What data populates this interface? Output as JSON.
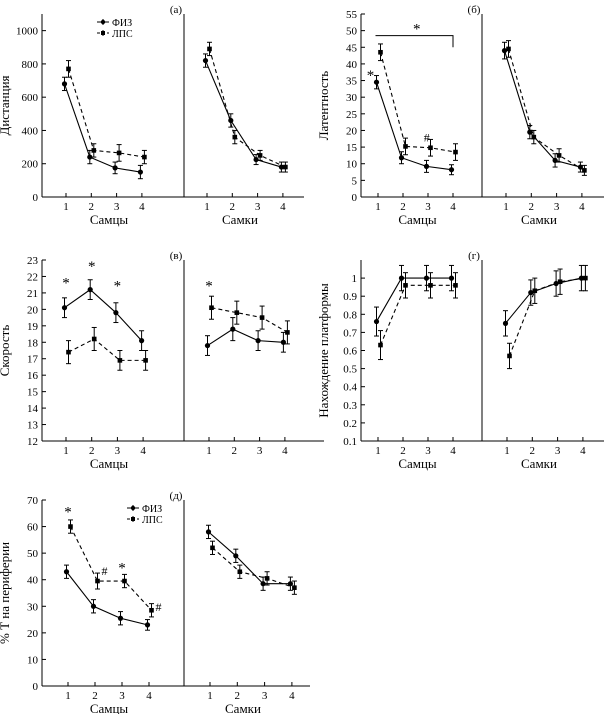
{
  "chart_data": [
    {
      "type": "line",
      "panel_label": "(а)",
      "title": "",
      "xlabel": "Самцы",
      "ylabel": "Дистанция",
      "x": [
        1,
        2,
        3,
        4
      ],
      "xticks": [
        "1",
        "2",
        "3",
        "4"
      ],
      "ylim": [
        0,
        1100
      ],
      "yticks": [
        0,
        200,
        400,
        600,
        800,
        1000
      ],
      "legend": {
        "entries": [
          "ФИЗ",
          "ЛПС"
        ],
        "placement": "top-left"
      },
      "series": [
        {
          "name": "ФИЗ",
          "style": "solid",
          "values": [
            680,
            240,
            175,
            150
          ],
          "errors": [
            40,
            40,
            35,
            40
          ]
        },
        {
          "name": "ЛПС",
          "style": "dashed",
          "values": [
            770,
            280,
            265,
            240
          ],
          "errors": [
            50,
            40,
            50,
            40
          ]
        }
      ],
      "annotations": []
    },
    {
      "type": "line",
      "panel_label": "",
      "title": "",
      "xlabel": "Самки",
      "ylabel": "",
      "x": [
        1,
        2,
        3,
        4
      ],
      "xticks": [
        "1",
        "2",
        "3",
        "4"
      ],
      "ylim": [
        0,
        1100
      ],
      "yticks": [],
      "series": [
        {
          "name": "ФИЗ",
          "style": "solid",
          "values": [
            820,
            460,
            225,
            180
          ],
          "errors": [
            40,
            40,
            30,
            30
          ]
        },
        {
          "name": "ЛПС",
          "style": "dashed",
          "values": [
            890,
            360,
            250,
            180
          ],
          "errors": [
            40,
            40,
            30,
            30
          ]
        }
      ],
      "annotations": []
    },
    {
      "type": "line",
      "panel_label": "(б)",
      "title": "",
      "xlabel": "Самцы",
      "ylabel": "Латентность",
      "x": [
        1,
        2,
        3,
        4
      ],
      "xticks": [
        "1",
        "2",
        "3",
        "4"
      ],
      "ylim": [
        0,
        55
      ],
      "yticks": [
        0,
        5,
        10,
        15,
        20,
        25,
        30,
        35,
        40,
        45,
        50,
        55
      ],
      "series": [
        {
          "name": "ФИЗ",
          "style": "solid",
          "values": [
            34.5,
            11.8,
            9.2,
            8.2
          ],
          "errors": [
            2.0,
            1.8,
            1.8,
            1.5
          ]
        },
        {
          "name": "ЛПС",
          "style": "dashed",
          "values": [
            43.5,
            15.2,
            14.8,
            13.5
          ],
          "errors": [
            2.5,
            2.5,
            2.5,
            2.5
          ]
        }
      ],
      "annotations": [
        {
          "text": "*",
          "x": 0.7,
          "y": 37
        },
        {
          "text": "*",
          "x": 2.55,
          "y": 51
        },
        {
          "text": "#",
          "x": 2.95,
          "y": 18.5
        }
      ],
      "bracket": {
        "from": 0.9,
        "to": 4.0,
        "y": 48.5,
        "down_to": 45
      }
    },
    {
      "type": "line",
      "panel_label": "",
      "title": "",
      "xlabel": "Самки",
      "ylabel": "",
      "x": [
        1,
        2,
        3,
        4
      ],
      "xticks": [
        "1",
        "2",
        "3",
        "4"
      ],
      "ylim": [
        0,
        55
      ],
      "yticks": [],
      "series": [
        {
          "name": "ФИЗ",
          "style": "solid",
          "values": [
            44.0,
            19.5,
            11.0,
            9.0
          ],
          "errors": [
            2.5,
            2.0,
            2.0,
            1.5
          ]
        },
        {
          "name": "ЛПС",
          "style": "dashed",
          "values": [
            44.5,
            18.0,
            12.5,
            8.0
          ],
          "errors": [
            2.5,
            2.0,
            2.0,
            1.5
          ]
        }
      ],
      "annotations": []
    },
    {
      "type": "line",
      "panel_label": "(в)",
      "title": "",
      "xlabel": "Самцы",
      "ylabel": "Скорость",
      "x": [
        1,
        2,
        3,
        4
      ],
      "xticks": [
        "1",
        "2",
        "3",
        "4"
      ],
      "ylim": [
        12,
        23
      ],
      "yticks": [
        12,
        13,
        14,
        15,
        16,
        17,
        18,
        19,
        20,
        21,
        22,
        23
      ],
      "series": [
        {
          "name": "ФИЗ",
          "style": "solid",
          "values": [
            20.1,
            21.2,
            19.8,
            18.1
          ],
          "errors": [
            0.6,
            0.6,
            0.6,
            0.6
          ]
        },
        {
          "name": "ЛПС",
          "style": "dashed",
          "values": [
            17.4,
            18.2,
            16.9,
            16.9
          ],
          "errors": [
            0.7,
            0.7,
            0.6,
            0.6
          ]
        }
      ],
      "annotations": [
        {
          "text": "*",
          "x": 1,
          "y": 21.7
        },
        {
          "text": "*",
          "x": 2,
          "y": 22.7
        },
        {
          "text": "*",
          "x": 3,
          "y": 21.5
        }
      ]
    },
    {
      "type": "line",
      "panel_label": "",
      "title": "",
      "xlabel": "",
      "ylabel": "",
      "x": [
        1,
        2,
        3,
        4
      ],
      "xticks": [
        "1",
        "2",
        "3",
        "4"
      ],
      "ylim": [
        12,
        23
      ],
      "yticks": [],
      "series": [
        {
          "name": "ФИЗ",
          "style": "solid",
          "values": [
            17.8,
            18.8,
            18.1,
            18.0
          ],
          "errors": [
            0.6,
            0.7,
            0.6,
            0.6
          ]
        },
        {
          "name": "ЛПС",
          "style": "dashed",
          "values": [
            20.1,
            19.8,
            19.5,
            18.6
          ],
          "errors": [
            0.7,
            0.7,
            0.7,
            0.7
          ]
        }
      ],
      "annotations": [
        {
          "text": "*",
          "x": 1,
          "y": 21.5
        }
      ]
    },
    {
      "type": "line",
      "panel_label": "(г)",
      "title": "",
      "xlabel": "Самцы",
      "ylabel": "Нахождение платформы",
      "x": [
        1,
        2,
        3,
        4
      ],
      "xticks": [
        "1",
        "2",
        "3",
        "4"
      ],
      "ylim": [
        0.1,
        1.1
      ],
      "yticks": [
        0.1,
        0.2,
        0.3,
        0.4,
        0.5,
        0.6,
        0.7,
        0.8,
        0.9,
        1.0
      ],
      "series": [
        {
          "name": "ФИЗ",
          "style": "solid",
          "values": [
            0.76,
            1.0,
            1.0,
            1.0
          ],
          "errors": [
            0.08,
            0.07,
            0.07,
            0.07
          ]
        },
        {
          "name": "ЛПС",
          "style": "dashed",
          "values": [
            0.63,
            0.96,
            0.96,
            0.96
          ],
          "errors": [
            0.08,
            0.07,
            0.07,
            0.07
          ]
        }
      ],
      "annotations": []
    },
    {
      "type": "line",
      "panel_label": "",
      "title": "",
      "xlabel": "Самки",
      "ylabel": "",
      "x": [
        1,
        2,
        3,
        4
      ],
      "xticks": [
        "1",
        "2",
        "3",
        "4"
      ],
      "ylim": [
        0.1,
        1.1
      ],
      "yticks": [],
      "series": [
        {
          "name": "ФИЗ",
          "style": "solid",
          "values": [
            0.75,
            0.92,
            0.97,
            1.0
          ],
          "errors": [
            0.07,
            0.07,
            0.07,
            0.07
          ]
        },
        {
          "name": "ЛПС",
          "style": "dashed",
          "values": [
            0.57,
            0.93,
            0.98,
            1.0
          ],
          "errors": [
            0.07,
            0.07,
            0.07,
            0.07
          ]
        }
      ],
      "annotations": []
    },
    {
      "type": "line",
      "panel_label": "(д)",
      "title": "",
      "xlabel": "Самцы",
      "ylabel": "% Т на периферии",
      "x": [
        1,
        2,
        3,
        4
      ],
      "xticks": [
        "1",
        "2",
        "3",
        "4"
      ],
      "ylim": [
        0,
        70
      ],
      "yticks": [
        0,
        10,
        20,
        30,
        40,
        50,
        60,
        70
      ],
      "legend": {
        "entries": [
          "ФИЗ",
          "ЛПС"
        ],
        "placement": "top-center"
      },
      "series": [
        {
          "name": "ФИЗ",
          "style": "solid",
          "values": [
            43,
            30,
            25.5,
            23
          ],
          "errors": [
            2.5,
            2.5,
            2.5,
            2.0
          ]
        },
        {
          "name": "ЛПС",
          "style": "dashed",
          "values": [
            60,
            39.5,
            39.5,
            28.5
          ],
          "errors": [
            2.5,
            3.0,
            2.5,
            2.5
          ]
        }
      ],
      "annotations": [
        {
          "text": "*",
          "x": 1,
          "y": 66
        },
        {
          "text": "#",
          "x": 2.35,
          "y": 44
        },
        {
          "text": "*",
          "x": 3,
          "y": 45
        },
        {
          "text": "#",
          "x": 4.35,
          "y": 30.5
        }
      ]
    },
    {
      "type": "line",
      "panel_label": "",
      "title": "",
      "xlabel": "Самки",
      "ylabel": "",
      "x": [
        1,
        2,
        3,
        4
      ],
      "xticks": [
        "1",
        "2",
        "3",
        "4"
      ],
      "ylim": [
        0,
        70
      ],
      "yticks": [],
      "series": [
        {
          "name": "ФИЗ",
          "style": "solid",
          "values": [
            58,
            49,
            38.5,
            38.5
          ],
          "errors": [
            2.5,
            2.5,
            2.5,
            2.5
          ]
        },
        {
          "name": "ЛПС",
          "style": "dashed",
          "values": [
            52,
            43,
            40.5,
            37
          ],
          "errors": [
            2.5,
            2.5,
            2.5,
            2.5
          ]
        }
      ],
      "annotations": []
    }
  ]
}
